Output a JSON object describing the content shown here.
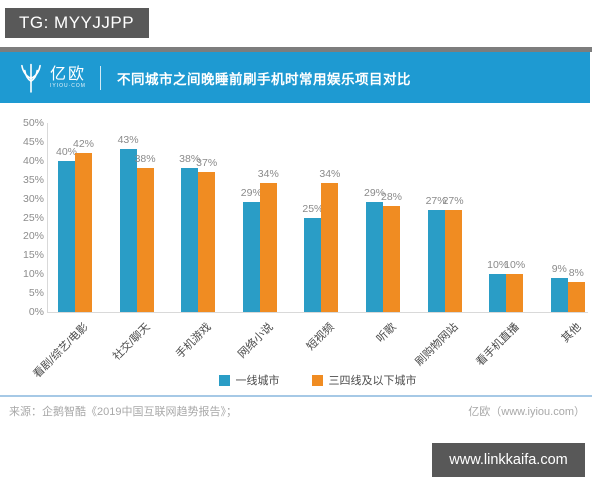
{
  "tg_badge": "TG: MYYJJPP",
  "header": {
    "logo_text": "亿欧",
    "logo_subtext": "IYIOU·COM",
    "title": "不同城市之间晚睡前刷手机时常用娱乐项目对比"
  },
  "chart_data": {
    "type": "bar",
    "title": "不同城市之间晚睡前刷手机时常用娱乐项目对比",
    "categories": [
      "看剧/综艺/电影",
      "社交/聊天",
      "手机游戏",
      "网络小说",
      "短视频",
      "听歌",
      "刷购物网站",
      "看手机直播",
      "其他"
    ],
    "series": [
      {
        "name": "一线城市",
        "color": "#2a9dc6",
        "values": [
          40,
          43,
          38,
          29,
          25,
          29,
          27,
          10,
          9
        ]
      },
      {
        "name": "三四线及以下城市",
        "color": "#f08c22",
        "values": [
          42,
          38,
          37,
          34,
          34,
          28,
          27,
          10,
          8
        ]
      }
    ],
    "ylim": [
      0,
      50
    ],
    "ytick_step": 5,
    "tick_suffix": "%",
    "grid": false,
    "legend_position": "bottom"
  },
  "footer": {
    "source": "来源：企鹅智酷《2019中国互联网趋势报告》；",
    "brand": "亿欧（www.iyiou.com）"
  },
  "watermark": "www.linkkaifa.com",
  "colors": {
    "header_band": "#1e9ad2",
    "primary_blue": "#2a9dc6",
    "secondary_orange": "#f08c22",
    "badge_gray": "#595959"
  }
}
